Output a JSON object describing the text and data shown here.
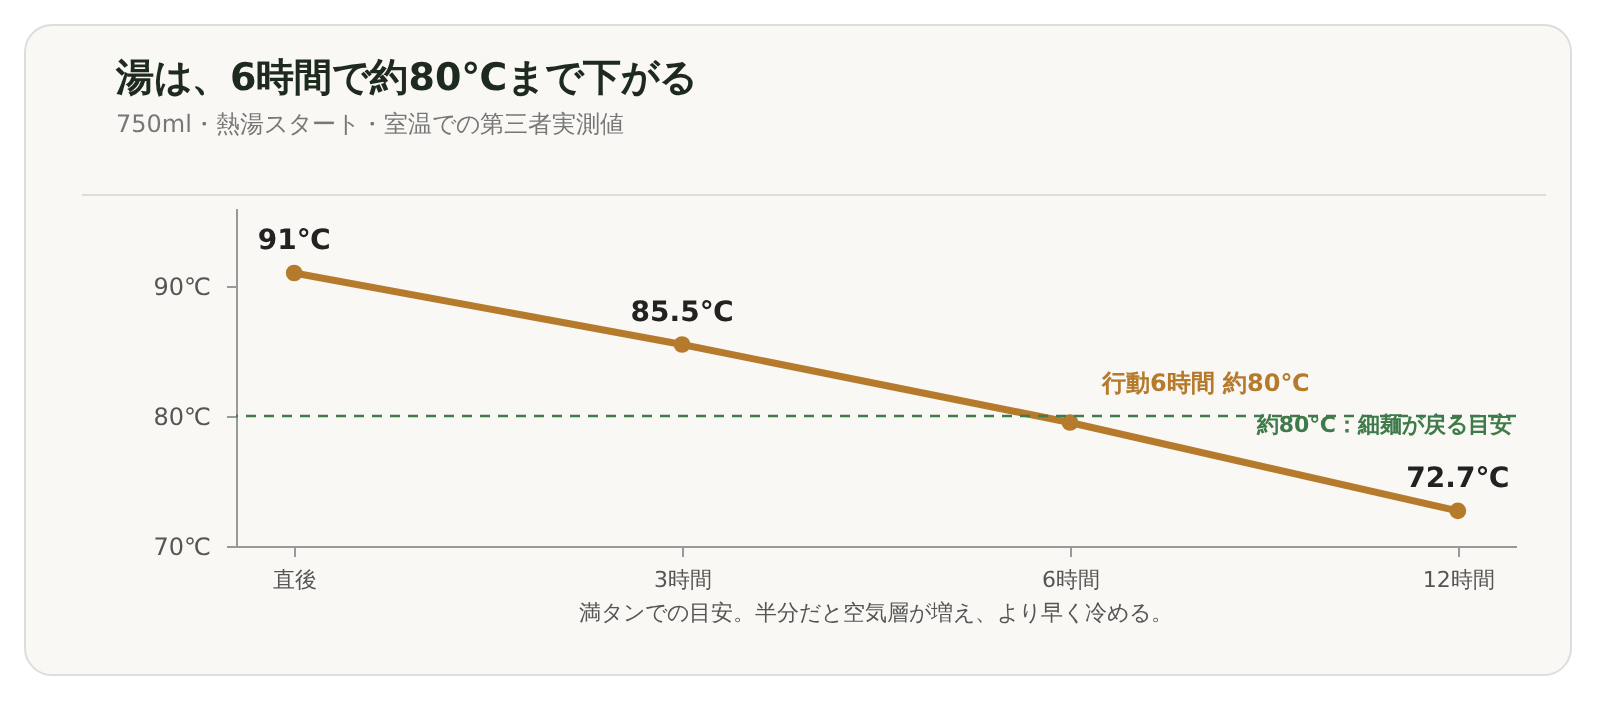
{
  "chart_data": {
    "type": "line",
    "title": "湯は、6時間で約80℃まで下がる",
    "subtitle": "750ml・熱湯スタート・室温での第三者実測値",
    "categories": [
      "直後",
      "3時間",
      "6時間",
      "12時間"
    ],
    "series": [
      {
        "color": "#b57a2c",
        "values": [
          91,
          85.5,
          79.5,
          72.7
        ],
        "value_labels": [
          "91℃",
          "85.5℃",
          null,
          "72.7℃"
        ]
      }
    ],
    "ylim": [
      70,
      96
    ],
    "yticks": [
      {
        "value": 70,
        "label": "70℃"
      },
      {
        "value": 80,
        "label": "80℃"
      },
      {
        "value": 90,
        "label": "90℃"
      }
    ],
    "ref_lines": [
      {
        "axis": "y",
        "value": 80,
        "label": "約80℃：細麺が戻る目安",
        "color": "#3f7a4a",
        "line_style": "dashed"
      }
    ],
    "annotations": [
      {
        "text": "行動6時間 約80℃",
        "x": "6時間",
        "y": 79.5
      },
      "満タンでの目安。半分だと空気層が増え、より早く冷める。"
    ],
    "marker": "circle",
    "line_style": "solid"
  }
}
